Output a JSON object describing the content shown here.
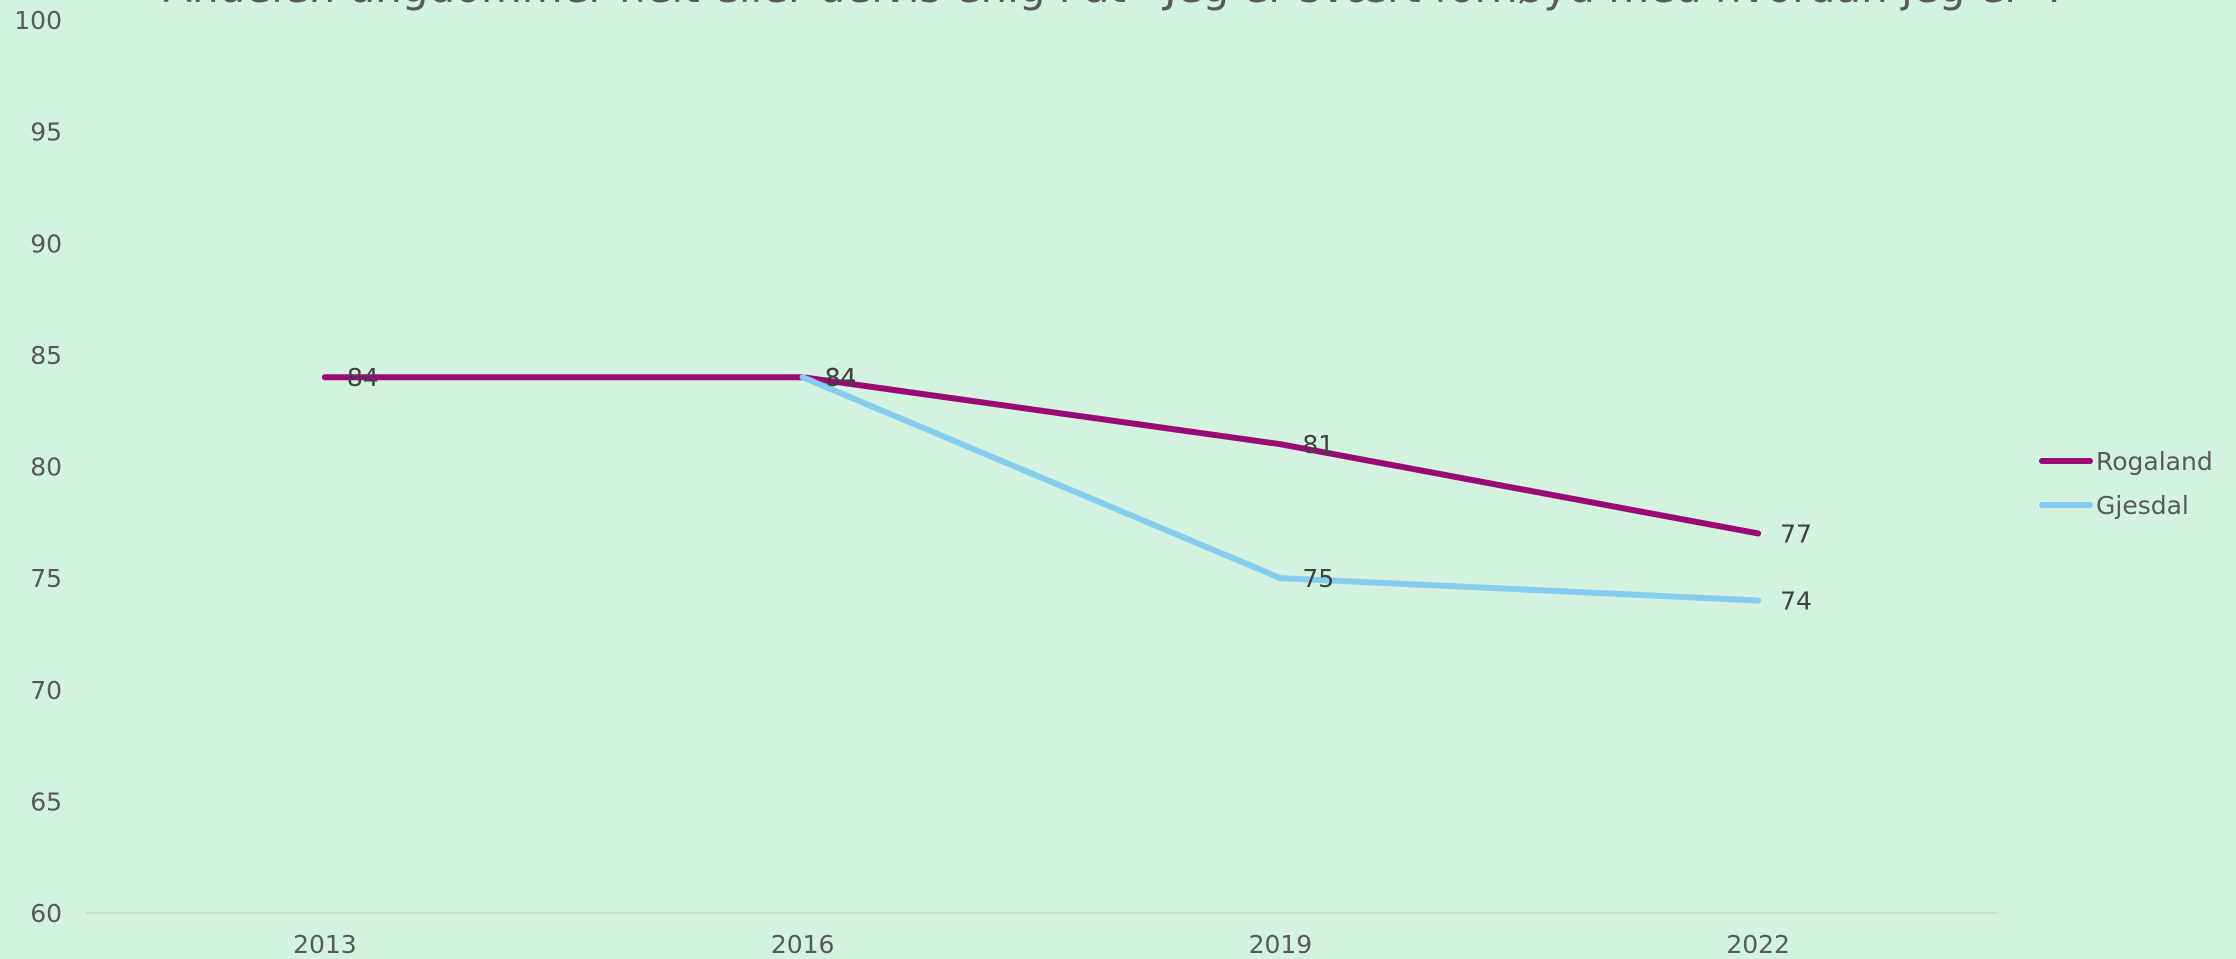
{
  "chart_data": {
    "type": "line",
    "title": "Andelen ungdommer helt eller delvis enig i at «Jeg er svært fornøyd med hvordan jeg er».",
    "categories": [
      "2013",
      "2016",
      "2019",
      "2022"
    ],
    "series": [
      {
        "name": "Rogaland",
        "color": "#9b0a72",
        "values": [
          84,
          84,
          81,
          77
        ]
      },
      {
        "name": "Gjesdal",
        "color": "#84cdee",
        "values": [
          null,
          84,
          75,
          74
        ]
      }
    ],
    "ylim": [
      60,
      100
    ],
    "yticks": [
      60,
      65,
      70,
      75,
      80,
      85,
      90,
      95,
      100
    ],
    "legend": "right"
  }
}
